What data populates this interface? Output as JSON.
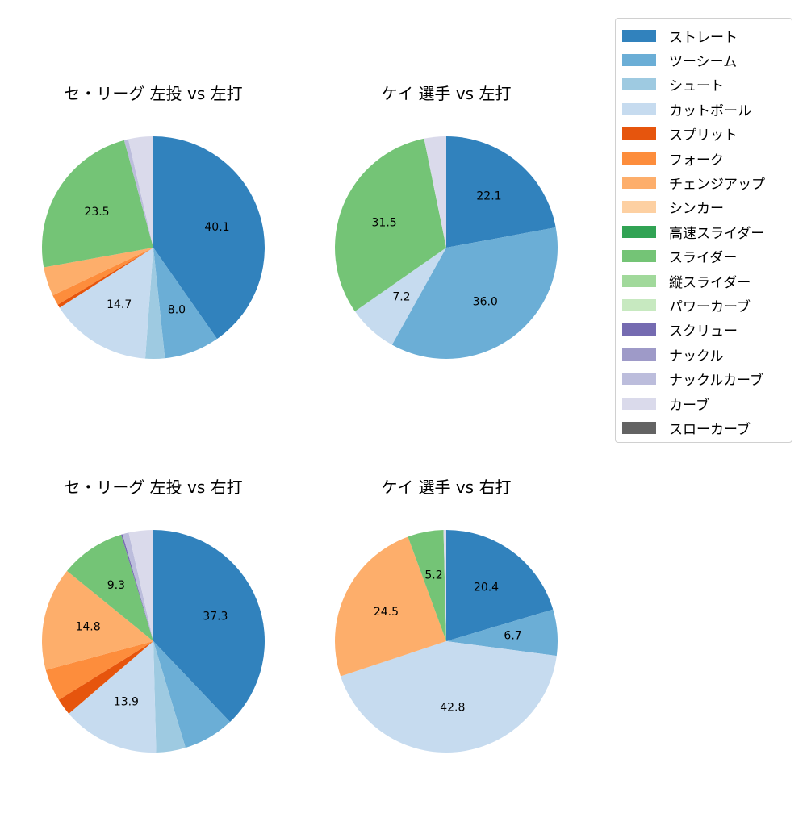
{
  "legend": {
    "items": [
      {
        "label": "ストレート",
        "color": "#3182bd"
      },
      {
        "label": "ツーシーム",
        "color": "#6baed6"
      },
      {
        "label": "シュート",
        "color": "#9ecae1"
      },
      {
        "label": "カットボール",
        "color": "#c6dbef"
      },
      {
        "label": "スプリット",
        "color": "#e6550d"
      },
      {
        "label": "フォーク",
        "color": "#fd8d3c"
      },
      {
        "label": "チェンジアップ",
        "color": "#fdae6b"
      },
      {
        "label": "シンカー",
        "color": "#fdd0a2"
      },
      {
        "label": "高速スライダー",
        "color": "#31a354"
      },
      {
        "label": "スライダー",
        "color": "#74c476"
      },
      {
        "label": "縦スライダー",
        "color": "#a1d99b"
      },
      {
        "label": "パワーカーブ",
        "color": "#c7e9c0"
      },
      {
        "label": "スクリュー",
        "color": "#756bb1"
      },
      {
        "label": "ナックル",
        "color": "#9e9ac8"
      },
      {
        "label": "ナックルカーブ",
        "color": "#bcbddc"
      },
      {
        "label": "カーブ",
        "color": "#dadaeb"
      },
      {
        "label": "スローカーブ",
        "color": "#636363"
      }
    ]
  },
  "panels": [
    {
      "title": "セ・リーグ 左投 vs 左打"
    },
    {
      "title": "ケイ 選手 vs 左打"
    },
    {
      "title": "セ・リーグ 左投 vs 右打"
    },
    {
      "title": "ケイ 選手 vs 右打"
    }
  ],
  "chart_data": [
    {
      "type": "pie",
      "title": "セ・リーグ 左投 vs 左打",
      "categories": [
        "ストレート",
        "ツーシーム",
        "シュート",
        "カットボール",
        "スプリット",
        "フォーク",
        "チェンジアップ",
        "スライダー",
        "ナックルカーブ",
        "カーブ",
        "スローカーブ"
      ],
      "values": [
        40.1,
        8.0,
        2.8,
        14.7,
        0.5,
        1.5,
        4.2,
        23.5,
        0.6,
        3.5,
        0.1
      ],
      "colors": [
        "#3182bd",
        "#6baed6",
        "#9ecae1",
        "#c6dbef",
        "#e6550d",
        "#fd8d3c",
        "#fdae6b",
        "#74c476",
        "#bcbddc",
        "#dadaeb",
        "#636363"
      ],
      "labels_shown": [
        "40.1",
        "8.0",
        "",
        "14.7",
        "",
        "",
        "",
        "23.5",
        "",
        "",
        ""
      ]
    },
    {
      "type": "pie",
      "title": "ケイ 選手 vs 左打",
      "categories": [
        "ストレート",
        "ツーシーム",
        "カットボール",
        "スライダー",
        "カーブ"
      ],
      "values": [
        22.1,
        36.0,
        7.2,
        31.5,
        3.2
      ],
      "colors": [
        "#3182bd",
        "#6baed6",
        "#c6dbef",
        "#74c476",
        "#dadaeb"
      ],
      "labels_shown": [
        "22.1",
        "36.0",
        "7.2",
        "31.5",
        ""
      ]
    },
    {
      "type": "pie",
      "title": "セ・リーグ 左投 vs 右打",
      "categories": [
        "ストレート",
        "ツーシーム",
        "シュート",
        "カットボール",
        "スプリット",
        "フォーク",
        "チェンジアップ",
        "スライダー",
        "スクリュー",
        "ナックルカーブ",
        "カーブ"
      ],
      "values": [
        37.3,
        7.3,
        4.2,
        13.9,
        2.4,
        4.6,
        14.8,
        9.3,
        0.2,
        0.9,
        3.5
      ],
      "colors": [
        "#3182bd",
        "#6baed6",
        "#9ecae1",
        "#c6dbef",
        "#e6550d",
        "#fd8d3c",
        "#fdae6b",
        "#74c476",
        "#756bb1",
        "#bcbddc",
        "#dadaeb"
      ],
      "labels_shown": [
        "37.3",
        "",
        "",
        "13.9",
        "",
        "",
        "14.8",
        "9.3",
        "",
        "",
        ""
      ]
    },
    {
      "type": "pie",
      "title": "ケイ 選手 vs 右打",
      "categories": [
        "ストレート",
        "ツーシーム",
        "カットボール",
        "チェンジアップ",
        "スライダー",
        "カーブ"
      ],
      "values": [
        20.4,
        6.7,
        42.8,
        24.5,
        5.2,
        0.4
      ],
      "colors": [
        "#3182bd",
        "#6baed6",
        "#c6dbef",
        "#fdae6b",
        "#74c476",
        "#dadaeb"
      ],
      "labels_shown": [
        "20.4",
        "6.7",
        "42.8",
        "24.5",
        "5.2",
        ""
      ]
    }
  ]
}
